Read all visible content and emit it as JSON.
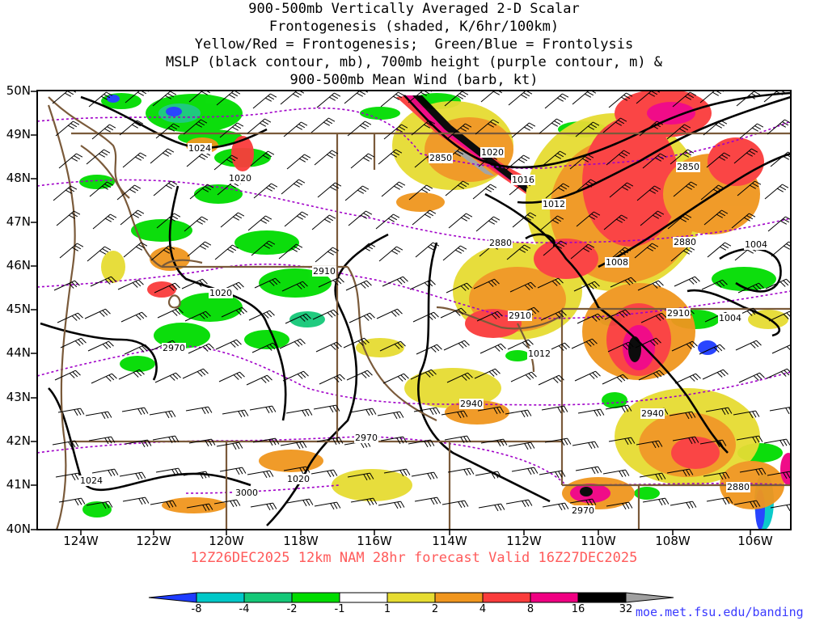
{
  "title_lines": [
    "900-500mb Vertically Averaged 2-D Scalar",
    "Frontogenesis (shaded, K/6hr/100km)",
    "Yellow/Red = Frontogenesis;  Green/Blue = Frontolysis",
    "MSLP (black contour, mb), 700mb height (purple contour, m) &",
    "900-500mb Mean Wind (barb, kt)"
  ],
  "valid_text": "12Z26DEC2025 12km NAM 28hr forecast Valid 16Z27DEC2025",
  "credit": "moe.met.fsu.edu/banding",
  "lat_labels": [
    "50N",
    "49N",
    "48N",
    "47N",
    "46N",
    "45N",
    "44N",
    "43N",
    "42N",
    "41N",
    "40N"
  ],
  "lon_labels": [
    "124W",
    "122W",
    "120W",
    "118W",
    "116W",
    "114W",
    "112W",
    "110W",
    "108W",
    "106W"
  ],
  "colorbar": {
    "labels": [
      "-8",
      "-4",
      "-2",
      "-1",
      "1",
      "2",
      "4",
      "8",
      "16",
      "32"
    ],
    "colors": [
      "#1e3cff",
      "#00c8c8",
      "#14c878",
      "#00dc00",
      "#ffffff",
      "#e6dc32",
      "#f0961e",
      "#fa3c3c",
      "#f00082",
      "#000000",
      "#a0a0a0"
    ]
  },
  "contour_labels": {
    "mslp": [
      "1024",
      "1020",
      "1020",
      "1020",
      "1016",
      "1012",
      "1008",
      "1004",
      "1004",
      "1012",
      "1020",
      "1024"
    ],
    "height700": [
      "2850",
      "2850",
      "2880",
      "2880",
      "2910",
      "2910",
      "2910",
      "2940",
      "2940",
      "2970",
      "2970",
      "2970",
      "3000",
      "2880"
    ]
  }
}
